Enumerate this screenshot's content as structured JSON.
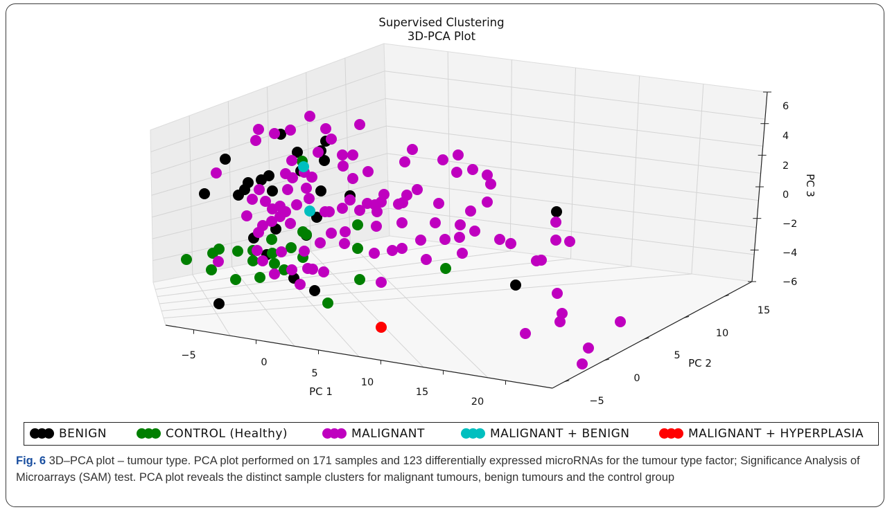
{
  "chart_data": {
    "type": "scatter",
    "projection": "3d",
    "title": "Supervised Clustering",
    "subtitle": "3D-PCA Plot",
    "xlabel": "PC 1",
    "ylabel": "PC 2",
    "zlabel": "PC 3",
    "x_ticks": [
      "−5",
      "0",
      "5",
      "10",
      "15",
      "20"
    ],
    "y_ticks": [
      "−5",
      "0",
      "5",
      "10",
      "15"
    ],
    "z_ticks": [
      "−6",
      "−4",
      "−2",
      "0",
      "2",
      "4",
      "6"
    ],
    "grid": true,
    "legend_position": "bottom",
    "series": [
      {
        "name": "BENIGN",
        "color": "#000000"
      },
      {
        "name": "CONTROL (Healthy)",
        "color": "#007f00"
      },
      {
        "name": "MALIGNANT",
        "color": "#bf00bf"
      },
      {
        "name": "MALIGNANT + BENIGN",
        "color": "#00bfbf"
      },
      {
        "name": "MALIGNANT + HYPERPLASIA",
        "color": "#ff0000"
      }
    ]
  },
  "caption": {
    "label": "Fig. 6",
    "text": " 3D–PCA plot – tumour type. PCA plot performed on 171 samples and 123 differentially expressed microRNAs for the tumour type factor; Significance Analysis of Microarrays (SAM) test. PCA plot reveals the distinct sample clusters for malignant tumours, benign tumours and the control group"
  }
}
